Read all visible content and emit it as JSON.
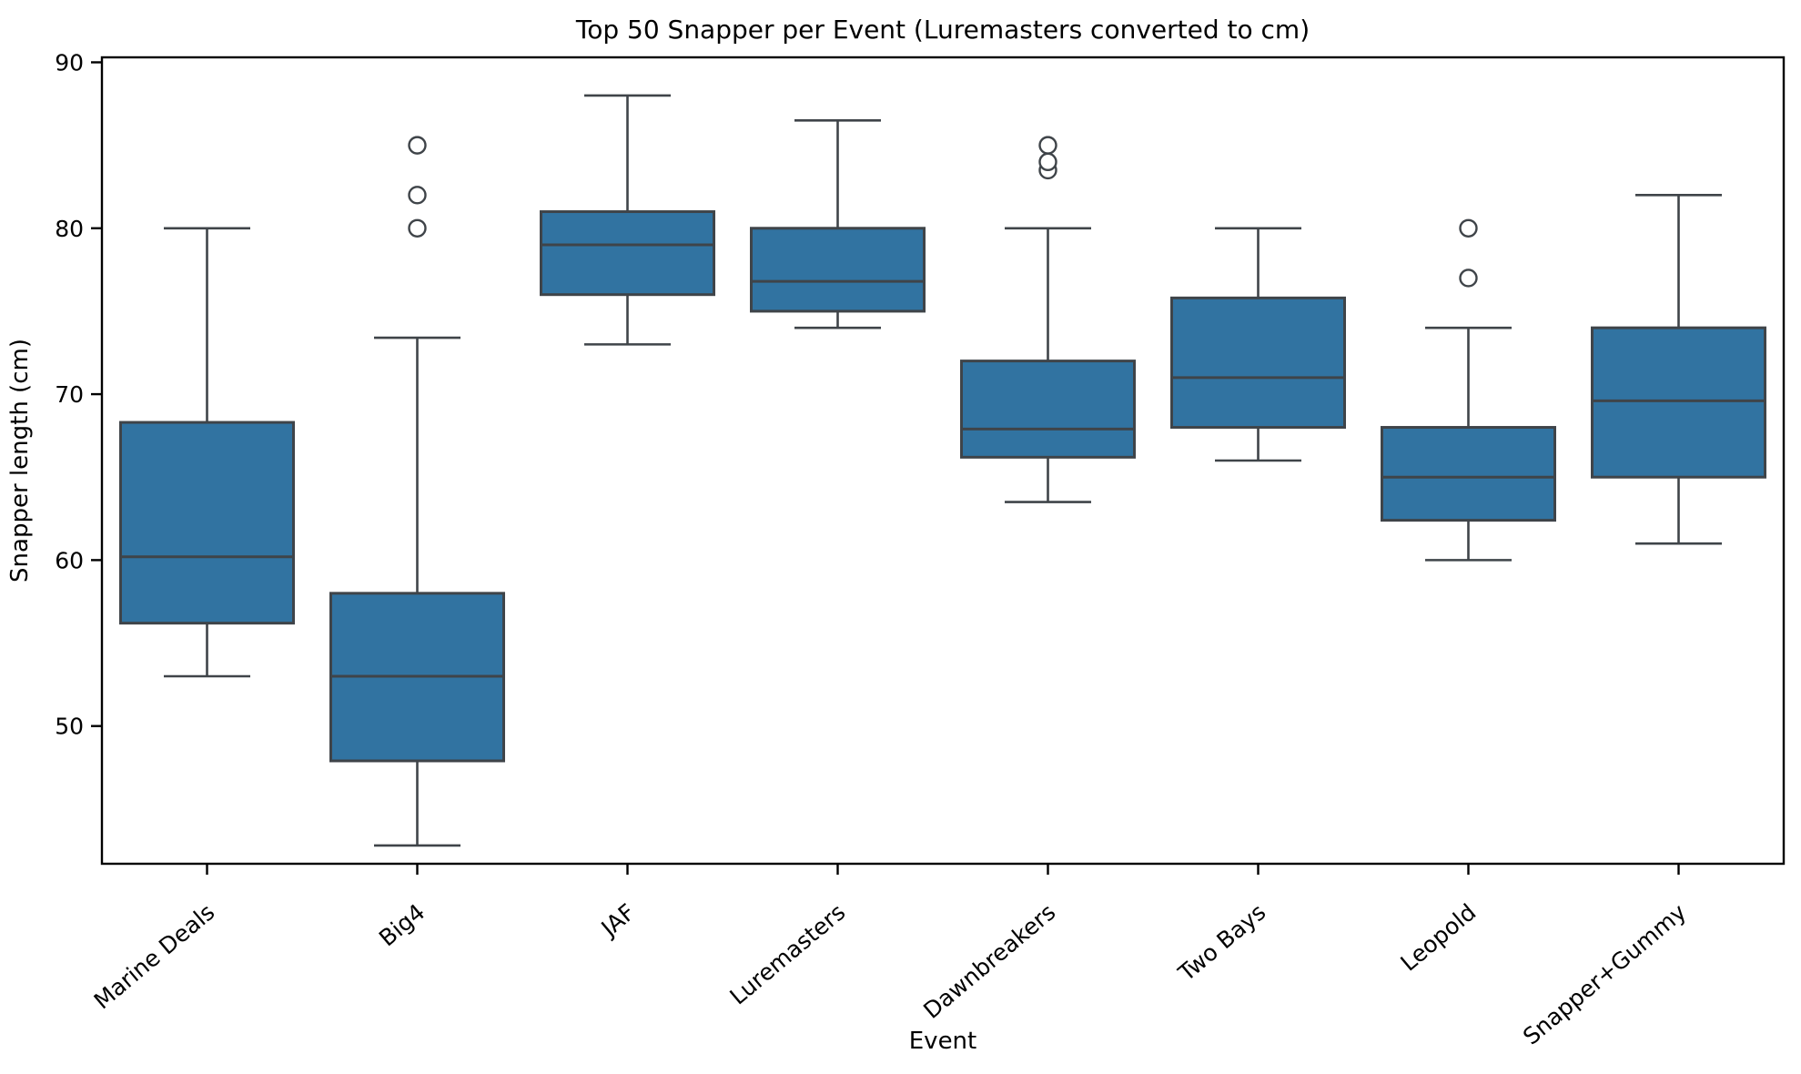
{
  "chart_data": {
    "type": "boxplot",
    "title": "Top 50 Snapper per Event (Luremasters converted to cm)",
    "xlabel": "Event",
    "ylabel": "Snapper length (cm)",
    "categories": [
      "Marine Deals",
      "Big4",
      "JAF",
      "Luremasters",
      "Dawnbreakers",
      "Two Bays",
      "Leopold",
      "Snapper+Gummy"
    ],
    "boxes": [
      {
        "label": "Marine Deals",
        "whislo": 53.0,
        "q1": 56.2,
        "med": 60.2,
        "q3": 68.3,
        "whishi": 80.0,
        "outliers": []
      },
      {
        "label": "Big4",
        "whislo": 42.8,
        "q1": 47.9,
        "med": 53.0,
        "q3": 58.0,
        "whishi": 73.4,
        "outliers": [
          80,
          82,
          85
        ]
      },
      {
        "label": "JAF",
        "whislo": 73.0,
        "q1": 76.0,
        "med": 79.0,
        "q3": 81.0,
        "whishi": 88.0,
        "outliers": []
      },
      {
        "label": "Luremasters",
        "whislo": 74.0,
        "q1": 75.0,
        "med": 76.8,
        "q3": 80.0,
        "whishi": 86.5,
        "outliers": []
      },
      {
        "label": "Dawnbreakers",
        "whislo": 63.5,
        "q1": 66.2,
        "med": 67.9,
        "q3": 72.0,
        "whishi": 80.0,
        "outliers": [
          83.5,
          84,
          85
        ]
      },
      {
        "label": "Two Bays",
        "whislo": 66.0,
        "q1": 68.0,
        "med": 71.0,
        "q3": 75.8,
        "whishi": 80.0,
        "outliers": []
      },
      {
        "label": "Leopold",
        "whislo": 60.0,
        "q1": 62.4,
        "med": 65.0,
        "q3": 68.0,
        "whishi": 74.0,
        "outliers": [
          77,
          80
        ]
      },
      {
        "label": "Snapper+Gummy",
        "whislo": 61.0,
        "q1": 65.0,
        "med": 69.6,
        "q3": 74.0,
        "whishi": 82.0,
        "outliers": []
      }
    ],
    "yticks": [
      50,
      60,
      70,
      80,
      90
    ],
    "ylim": [
      41.7,
      90.3
    ],
    "grid": false,
    "legend": "none",
    "x_tick_rotation_deg": -40,
    "colors": {
      "box_fill": "#3173a1",
      "box_edge": "#3f4449",
      "whisker": "#3f4449",
      "outlier_edge": "#3f4449",
      "spine": "#000000",
      "background": "#ffffff"
    }
  }
}
